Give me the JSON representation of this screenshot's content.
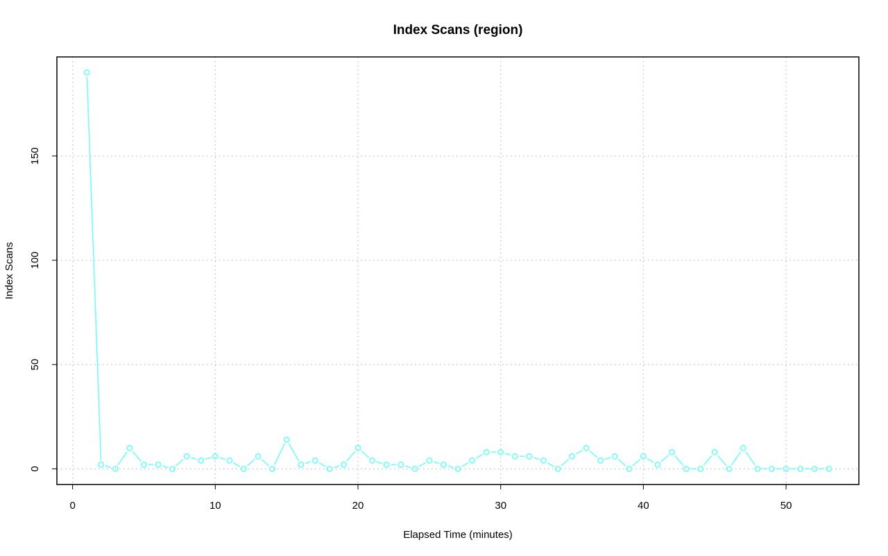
{
  "chart_data": {
    "type": "line",
    "title": "Index Scans (region)",
    "xlabel": "Elapsed Time (minutes)",
    "ylabel": "Index Scans",
    "xlim": [
      -1.1,
      55.1
    ],
    "ylim": [
      -7.5,
      197.5
    ],
    "x_ticks": [
      0,
      10,
      20,
      30,
      40,
      50
    ],
    "y_ticks": [
      0,
      50,
      100,
      150
    ],
    "grid": true,
    "legend": "none",
    "series": [
      {
        "color": "#66ffff",
        "marker": "open-circle",
        "x": [
          1,
          2,
          3,
          4,
          5,
          6,
          7,
          8,
          9,
          10,
          11,
          12,
          13,
          14,
          15,
          16,
          17,
          18,
          19,
          20,
          21,
          22,
          23,
          24,
          25,
          26,
          27,
          28,
          29,
          30,
          31,
          32,
          33,
          34,
          35,
          36,
          37,
          38,
          39,
          40,
          41,
          42,
          43,
          44,
          45,
          46,
          47,
          48,
          49,
          50,
          51,
          52,
          53
        ],
        "y": [
          190,
          2,
          0,
          10,
          2,
          2,
          0,
          6,
          4,
          6,
          4,
          0,
          6,
          0,
          14,
          2,
          4,
          0,
          2,
          10,
          4,
          2,
          2,
          0,
          4,
          2,
          0,
          4,
          8,
          8,
          6,
          6,
          4,
          0,
          6,
          10,
          4,
          6,
          0,
          6,
          2,
          8,
          0,
          0,
          8,
          0,
          10,
          0,
          0,
          0,
          0,
          0,
          0
        ]
      }
    ],
    "colors": {
      "series": "#66ffff",
      "grid": "#c8c8c8",
      "axis": "#000000"
    }
  }
}
